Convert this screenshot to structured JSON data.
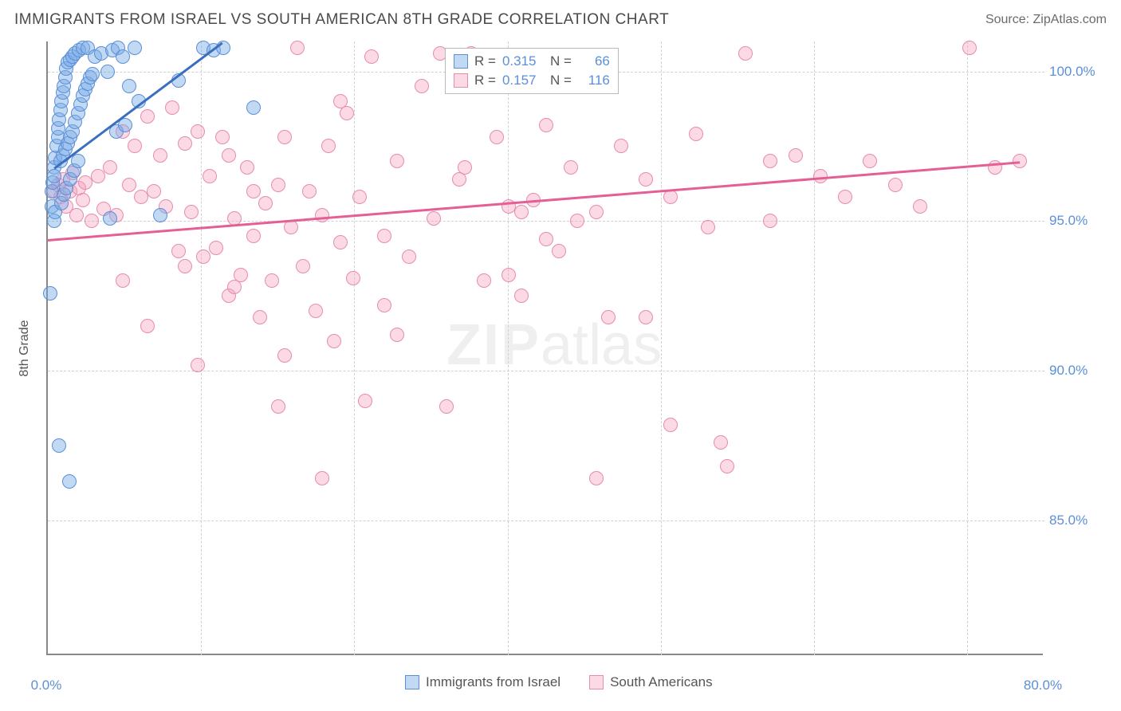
{
  "title": "IMMIGRANTS FROM ISRAEL VS SOUTH AMERICAN 8TH GRADE CORRELATION CHART",
  "source": "Source: ZipAtlas.com",
  "watermark_zip": "ZIP",
  "watermark_atlas": "atlas",
  "ylabel": "8th Grade",
  "chart": {
    "type": "scatter",
    "background_color": "#ffffff",
    "grid_color": "#d0d0d0",
    "axis_color": "#888888",
    "xlim": [
      0,
      80
    ],
    "ylim": [
      80.5,
      101
    ],
    "ytick_values": [
      85,
      90,
      95,
      100
    ],
    "ytick_labels": [
      "85.0%",
      "90.0%",
      "95.0%",
      "100.0%"
    ],
    "ytick_fontsize": 17,
    "ytick_color": "#5b8fd6",
    "xtick_values": [
      0,
      80
    ],
    "xtick_labels": [
      "0.0%",
      "80.0%"
    ],
    "x_minor_ticks": [
      12.3,
      24.6,
      36.9,
      49.2,
      61.5,
      73.8
    ],
    "point_radius": 9,
    "point_opacity": 0.55,
    "series": [
      {
        "name": "Immigrants from Israel",
        "color_fill": "rgba(120,170,230,0.45)",
        "color_stroke": "#5b8fd6",
        "R": "0.315",
        "N": "66",
        "trend": {
          "x1": 0.5,
          "y1": 96.8,
          "x2": 14,
          "y2": 101,
          "color": "#3a6fc0",
          "width": 2.5
        },
        "points": [
          [
            0.3,
            95.5
          ],
          [
            0.3,
            96.0
          ],
          [
            0.4,
            96.3
          ],
          [
            0.5,
            96.8
          ],
          [
            0.6,
            97.1
          ],
          [
            0.7,
            97.5
          ],
          [
            0.8,
            97.8
          ],
          [
            0.8,
            98.1
          ],
          [
            0.9,
            98.4
          ],
          [
            1.0,
            98.7
          ],
          [
            1.1,
            99.0
          ],
          [
            1.2,
            99.3
          ],
          [
            1.3,
            99.5
          ],
          [
            1.4,
            99.8
          ],
          [
            1.5,
            100.1
          ],
          [
            1.6,
            100.3
          ],
          [
            1.8,
            100.4
          ],
          [
            2.0,
            100.5
          ],
          [
            2.2,
            100.6
          ],
          [
            2.5,
            100.7
          ],
          [
            2.8,
            100.8
          ],
          [
            3.2,
            100.8
          ],
          [
            3.8,
            100.5
          ],
          [
            4.3,
            100.6
          ],
          [
            4.8,
            100.0
          ],
          [
            5.2,
            100.7
          ],
          [
            5.6,
            100.8
          ],
          [
            6.0,
            100.5
          ],
          [
            6.5,
            99.5
          ],
          [
            7.0,
            100.8
          ],
          [
            1.0,
            97.0
          ],
          [
            1.2,
            97.2
          ],
          [
            1.4,
            97.4
          ],
          [
            1.6,
            97.6
          ],
          [
            1.8,
            97.8
          ],
          [
            2.0,
            98.0
          ],
          [
            2.2,
            98.3
          ],
          [
            2.4,
            98.6
          ],
          [
            2.6,
            98.9
          ],
          [
            2.8,
            99.2
          ],
          [
            3.0,
            99.4
          ],
          [
            3.2,
            99.6
          ],
          [
            3.4,
            99.8
          ],
          [
            3.6,
            99.9
          ],
          [
            0.5,
            95.0
          ],
          [
            0.6,
            95.3
          ],
          [
            1.1,
            95.6
          ],
          [
            1.3,
            95.9
          ],
          [
            1.5,
            96.1
          ],
          [
            1.8,
            96.4
          ],
          [
            2.1,
            96.7
          ],
          [
            2.4,
            97.0
          ],
          [
            5.5,
            98.0
          ],
          [
            6.2,
            98.2
          ],
          [
            7.3,
            99.0
          ],
          [
            10.5,
            99.7
          ],
          [
            12.5,
            100.8
          ],
          [
            13.3,
            100.7
          ],
          [
            14.1,
            100.8
          ],
          [
            5.0,
            95.1
          ],
          [
            9.0,
            95.2
          ],
          [
            0.2,
            92.6
          ],
          [
            0.9,
            87.5
          ],
          [
            1.7,
            86.3
          ],
          [
            16.5,
            98.8
          ],
          [
            0.5,
            96.5
          ]
        ]
      },
      {
        "name": "South Americans",
        "color_fill": "rgba(245,160,190,0.40)",
        "color_stroke": "#e78bb0",
        "R": "0.157",
        "N": "116",
        "trend": {
          "x1": 0,
          "y1": 94.4,
          "x2": 78,
          "y2": 97.0,
          "color": "#e45f94",
          "width": 2.5
        },
        "points": [
          [
            0.5,
            96.0
          ],
          [
            0.8,
            96.2
          ],
          [
            1.0,
            95.8
          ],
          [
            1.2,
            96.4
          ],
          [
            1.5,
            95.5
          ],
          [
            1.8,
            96.0
          ],
          [
            2.0,
            96.6
          ],
          [
            2.3,
            95.2
          ],
          [
            2.5,
            96.1
          ],
          [
            2.8,
            95.7
          ],
          [
            3.0,
            96.3
          ],
          [
            3.5,
            95.0
          ],
          [
            4.0,
            96.5
          ],
          [
            4.5,
            95.4
          ],
          [
            5.0,
            96.8
          ],
          [
            5.5,
            95.2
          ],
          [
            6.0,
            98.0
          ],
          [
            6.5,
            96.2
          ],
          [
            7.0,
            97.5
          ],
          [
            7.5,
            95.8
          ],
          [
            8.0,
            98.5
          ],
          [
            8.5,
            96.0
          ],
          [
            9.0,
            97.2
          ],
          [
            9.5,
            95.5
          ],
          [
            10.0,
            98.8
          ],
          [
            10.5,
            94.0
          ],
          [
            11.0,
            97.6
          ],
          [
            11.5,
            95.3
          ],
          [
            12.0,
            98.0
          ],
          [
            12.5,
            93.8
          ],
          [
            13.0,
            96.5
          ],
          [
            13.5,
            94.1
          ],
          [
            14.0,
            97.8
          ],
          [
            14.5,
            92.5
          ],
          [
            15.0,
            95.1
          ],
          [
            15.5,
            93.2
          ],
          [
            16.0,
            96.8
          ],
          [
            16.5,
            94.5
          ],
          [
            17.0,
            91.8
          ],
          [
            17.5,
            95.6
          ],
          [
            18.0,
            93.0
          ],
          [
            18.5,
            96.2
          ],
          [
            19.0,
            90.5
          ],
          [
            19.5,
            94.8
          ],
          [
            20.0,
            100.8
          ],
          [
            20.5,
            93.5
          ],
          [
            21.0,
            96.0
          ],
          [
            21.5,
            92.0
          ],
          [
            22.0,
            95.2
          ],
          [
            22.5,
            97.5
          ],
          [
            23.0,
            91.0
          ],
          [
            23.5,
            94.3
          ],
          [
            24.0,
            98.6
          ],
          [
            24.5,
            93.1
          ],
          [
            25.0,
            95.8
          ],
          [
            26.0,
            100.5
          ],
          [
            27.0,
            92.2
          ],
          [
            28.0,
            97.0
          ],
          [
            29.0,
            93.8
          ],
          [
            30.0,
            99.5
          ],
          [
            31.0,
            95.1
          ],
          [
            32.0,
            88.8
          ],
          [
            33.0,
            96.4
          ],
          [
            34.0,
            100.6
          ],
          [
            35.0,
            93.0
          ],
          [
            36.0,
            97.8
          ],
          [
            37.0,
            95.5
          ],
          [
            38.0,
            92.5
          ],
          [
            39.0,
            95.7
          ],
          [
            40.0,
            98.2
          ],
          [
            41.0,
            94.0
          ],
          [
            42.0,
            96.8
          ],
          [
            44.0,
            95.3
          ],
          [
            46.0,
            97.5
          ],
          [
            48.0,
            91.8
          ],
          [
            50.0,
            95.8
          ],
          [
            52.0,
            97.9
          ],
          [
            54.0,
            87.6
          ],
          [
            56.0,
            100.6
          ],
          [
            58.0,
            95.0
          ],
          [
            60.0,
            97.2
          ],
          [
            62.0,
            96.5
          ],
          [
            64.0,
            95.8
          ],
          [
            66.0,
            97.0
          ],
          [
            68.0,
            96.2
          ],
          [
            70.0,
            95.5
          ],
          [
            74.0,
            100.8
          ],
          [
            76.0,
            96.8
          ],
          [
            78.0,
            97.0
          ],
          [
            6.0,
            93.0
          ],
          [
            8.0,
            91.5
          ],
          [
            12.0,
            90.2
          ],
          [
            15.0,
            92.8
          ],
          [
            18.5,
            88.8
          ],
          [
            22.0,
            86.4
          ],
          [
            25.5,
            89.0
          ],
          [
            28.0,
            91.2
          ],
          [
            31.5,
            100.6
          ],
          [
            40.0,
            94.4
          ],
          [
            45.0,
            91.8
          ],
          [
            50.0,
            88.2
          ],
          [
            54.5,
            86.8
          ],
          [
            58.0,
            97.0
          ],
          [
            11.0,
            93.5
          ],
          [
            16.5,
            96.0
          ],
          [
            19.0,
            97.8
          ],
          [
            23.5,
            99.0
          ],
          [
            27.0,
            94.5
          ],
          [
            33.5,
            96.8
          ],
          [
            37.0,
            93.2
          ],
          [
            42.5,
            95.0
          ],
          [
            48.0,
            96.4
          ],
          [
            53.0,
            94.8
          ],
          [
            38.0,
            95.3
          ],
          [
            44.0,
            86.4
          ],
          [
            14.5,
            97.2
          ]
        ]
      }
    ]
  },
  "legend_top": {
    "R_label": "R =",
    "N_label": "N ="
  },
  "legend_bottom": {
    "series1": "Immigrants from Israel",
    "series2": "South Americans"
  }
}
